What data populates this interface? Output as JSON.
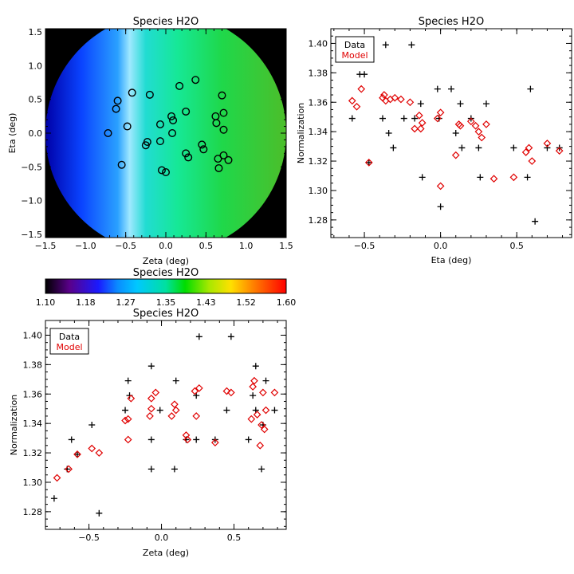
{
  "colorbar": {
    "title": "Species H2O",
    "ticks": [
      "1.10",
      "1.18",
      "1.27",
      "1.35",
      "1.43",
      "1.52",
      "1.60"
    ],
    "range": [
      1.1,
      1.6
    ]
  },
  "chart_data": [
    {
      "id": "map",
      "type": "heatmap",
      "title": "Species H2O",
      "xlabel": "Zeta (deg)",
      "ylabel": "Eta (deg)",
      "xlim": [
        -1.5,
        1.5
      ],
      "ylim": [
        -1.55,
        1.55
      ],
      "xticks": [
        -1.5,
        -1.0,
        -0.5,
        0.0,
        0.5,
        1.0,
        1.5
      ],
      "xtick_labels": [
        "−1.5",
        "−1.0",
        "−0.5",
        "0.0",
        "0.5",
        "1.0",
        "1.5"
      ],
      "yticks": [
        -1.5,
        -1.0,
        -0.5,
        0.0,
        0.5,
        1.0,
        1.5
      ],
      "ytick_labels": [
        "−1.5",
        "−1.0",
        "−0.5",
        "0.0",
        "0.5",
        "1.0",
        "1.5"
      ],
      "field_radius_deg": 1.5,
      "color_stops": [
        {
          "x": -1.5,
          "color": "#0000a8"
        },
        {
          "x": -1.05,
          "color": "#0a44ff"
        },
        {
          "x": -0.6,
          "color": "#2aa0ff"
        },
        {
          "x": -0.45,
          "color": "#9fe8ff"
        },
        {
          "x": -0.25,
          "color": "#21dcd2"
        },
        {
          "x": 0.15,
          "color": "#16e896"
        },
        {
          "x": 0.7,
          "color": "#1fd84a"
        },
        {
          "x": 1.5,
          "color": "#4cbe2a"
        }
      ],
      "stations": [
        {
          "zeta": -0.72,
          "eta": 0.0
        },
        {
          "zeta": -0.62,
          "eta": 0.36
        },
        {
          "zeta": -0.6,
          "eta": 0.48
        },
        {
          "zeta": -0.55,
          "eta": -0.47
        },
        {
          "zeta": -0.48,
          "eta": 0.1
        },
        {
          "zeta": -0.42,
          "eta": 0.6
        },
        {
          "zeta": -0.25,
          "eta": -0.18
        },
        {
          "zeta": -0.23,
          "eta": -0.13
        },
        {
          "zeta": -0.2,
          "eta": 0.57
        },
        {
          "zeta": -0.07,
          "eta": -0.12
        },
        {
          "zeta": -0.07,
          "eta": 0.13
        },
        {
          "zeta": -0.05,
          "eta": -0.55
        },
        {
          "zeta": 0.0,
          "eta": -0.58
        },
        {
          "zeta": 0.07,
          "eta": 0.25
        },
        {
          "zeta": 0.09,
          "eta": 0.19
        },
        {
          "zeta": 0.08,
          "eta": 0.0
        },
        {
          "zeta": 0.17,
          "eta": 0.7
        },
        {
          "zeta": 0.25,
          "eta": 0.32
        },
        {
          "zeta": 0.25,
          "eta": -0.3
        },
        {
          "zeta": 0.28,
          "eta": -0.36
        },
        {
          "zeta": 0.37,
          "eta": 0.79
        },
        {
          "zeta": 0.45,
          "eta": -0.17
        },
        {
          "zeta": 0.47,
          "eta": -0.24
        },
        {
          "zeta": 0.62,
          "eta": 0.25
        },
        {
          "zeta": 0.63,
          "eta": 0.15
        },
        {
          "zeta": 0.65,
          "eta": -0.38
        },
        {
          "zeta": 0.66,
          "eta": -0.52
        },
        {
          "zeta": 0.7,
          "eta": 0.56
        },
        {
          "zeta": 0.72,
          "eta": 0.3
        },
        {
          "zeta": 0.72,
          "eta": 0.05
        },
        {
          "zeta": 0.72,
          "eta": -0.33
        },
        {
          "zeta": 0.78,
          "eta": -0.4
        }
      ]
    },
    {
      "id": "eta_plot",
      "type": "scatter",
      "title": "Species H2O",
      "xlabel": "Eta (deg)",
      "ylabel": "Normalization",
      "xlim": [
        -0.72,
        0.86
      ],
      "ylim": [
        1.268,
        1.41
      ],
      "xticks": [
        -0.5,
        0.0,
        0.5
      ],
      "xtick_labels": [
        "−0.5",
        "0.0",
        "0.5"
      ],
      "yticks": [
        1.28,
        1.3,
        1.32,
        1.34,
        1.36,
        1.38,
        1.4
      ],
      "ytick_labels": [
        "1.28",
        "1.30",
        "1.32",
        "1.34",
        "1.36",
        "1.38",
        "1.40"
      ],
      "legend": {
        "position": "top-left",
        "entries": [
          "Data",
          "Model"
        ]
      },
      "series": [
        {
          "name": "Data",
          "marker": "plus",
          "color": "#000000",
          "points": [
            [
              -0.58,
              1.349
            ],
            [
              -0.53,
              1.379
            ],
            [
              -0.5,
              1.379
            ],
            [
              -0.47,
              1.319
            ],
            [
              -0.38,
              1.349
            ],
            [
              -0.36,
              1.399
            ],
            [
              -0.34,
              1.339
            ],
            [
              -0.31,
              1.329
            ],
            [
              -0.24,
              1.349
            ],
            [
              -0.19,
              1.399
            ],
            [
              -0.17,
              1.349
            ],
            [
              -0.13,
              1.359
            ],
            [
              -0.12,
              1.309
            ],
            [
              -0.02,
              1.369
            ],
            [
              -0.01,
              1.349
            ],
            [
              0.0,
              1.289
            ],
            [
              0.07,
              1.369
            ],
            [
              0.1,
              1.339
            ],
            [
              0.13,
              1.359
            ],
            [
              0.14,
              1.329
            ],
            [
              0.2,
              1.349
            ],
            [
              0.25,
              1.329
            ],
            [
              0.26,
              1.309
            ],
            [
              0.3,
              1.359
            ],
            [
              0.48,
              1.329
            ],
            [
              0.57,
              1.309
            ],
            [
              0.59,
              1.369
            ],
            [
              0.62,
              1.279
            ],
            [
              0.7,
              1.329
            ],
            [
              0.78,
              1.329
            ]
          ]
        },
        {
          "name": "Model",
          "marker": "diamond",
          "color": "#e00000",
          "points": [
            [
              -0.58,
              1.361
            ],
            [
              -0.55,
              1.357
            ],
            [
              -0.52,
              1.369
            ],
            [
              -0.47,
              1.319
            ],
            [
              -0.38,
              1.363
            ],
            [
              -0.37,
              1.365
            ],
            [
              -0.36,
              1.361
            ],
            [
              -0.33,
              1.362
            ],
            [
              -0.3,
              1.363
            ],
            [
              -0.26,
              1.362
            ],
            [
              -0.2,
              1.36
            ],
            [
              -0.17,
              1.342
            ],
            [
              -0.14,
              1.351
            ],
            [
              -0.13,
              1.342
            ],
            [
              -0.12,
              1.346
            ],
            [
              -0.02,
              1.349
            ],
            [
              0.0,
              1.353
            ],
            [
              0.0,
              1.303
            ],
            [
              0.1,
              1.324
            ],
            [
              0.12,
              1.345
            ],
            [
              0.13,
              1.344
            ],
            [
              0.2,
              1.347
            ],
            [
              0.23,
              1.344
            ],
            [
              0.25,
              1.34
            ],
            [
              0.27,
              1.336
            ],
            [
              0.3,
              1.345
            ],
            [
              0.35,
              1.308
            ],
            [
              0.48,
              1.309
            ],
            [
              0.56,
              1.326
            ],
            [
              0.58,
              1.329
            ],
            [
              0.6,
              1.32
            ],
            [
              0.7,
              1.332
            ],
            [
              0.78,
              1.327
            ]
          ]
        }
      ]
    },
    {
      "id": "zeta_plot",
      "type": "scatter",
      "title": "Species H2O",
      "xlabel": "Zeta (deg)",
      "ylabel": "Normalization",
      "xlim": [
        -0.8,
        0.86
      ],
      "ylim": [
        1.268,
        1.41
      ],
      "xticks": [
        -0.5,
        0.0,
        0.5
      ],
      "xtick_labels": [
        "−0.5",
        "0.0",
        "0.5"
      ],
      "yticks": [
        1.28,
        1.3,
        1.32,
        1.34,
        1.36,
        1.38,
        1.4
      ],
      "ytick_labels": [
        "1.28",
        "1.30",
        "1.32",
        "1.34",
        "1.36",
        "1.38",
        "1.40"
      ],
      "legend": {
        "position": "top-left",
        "entries": [
          "Data",
          "Model"
        ]
      },
      "series": [
        {
          "name": "Data",
          "marker": "plus",
          "color": "#000000",
          "points": [
            [
              -0.74,
              1.289
            ],
            [
              -0.65,
              1.309
            ],
            [
              -0.62,
              1.329
            ],
            [
              -0.58,
              1.319
            ],
            [
              -0.48,
              1.339
            ],
            [
              -0.43,
              1.279
            ],
            [
              -0.25,
              1.349
            ],
            [
              -0.23,
              1.369
            ],
            [
              -0.22,
              1.359
            ],
            [
              -0.07,
              1.379
            ],
            [
              -0.07,
              1.329
            ],
            [
              -0.07,
              1.309
            ],
            [
              -0.01,
              1.349
            ],
            [
              0.09,
              1.309
            ],
            [
              0.1,
              1.369
            ],
            [
              0.17,
              1.329
            ],
            [
              0.24,
              1.359
            ],
            [
              0.24,
              1.329
            ],
            [
              0.26,
              1.399
            ],
            [
              0.37,
              1.329
            ],
            [
              0.45,
              1.349
            ],
            [
              0.48,
              1.399
            ],
            [
              0.6,
              1.329
            ],
            [
              0.63,
              1.359
            ],
            [
              0.65,
              1.379
            ],
            [
              0.65,
              1.349
            ],
            [
              0.69,
              1.309
            ],
            [
              0.7,
              1.339
            ],
            [
              0.72,
              1.369
            ],
            [
              0.78,
              1.349
            ]
          ]
        },
        {
          "name": "Model",
          "marker": "diamond",
          "color": "#e00000",
          "points": [
            [
              -0.72,
              1.303
            ],
            [
              -0.64,
              1.309
            ],
            [
              -0.58,
              1.319
            ],
            [
              -0.48,
              1.323
            ],
            [
              -0.43,
              1.32
            ],
            [
              -0.25,
              1.342
            ],
            [
              -0.23,
              1.343
            ],
            [
              -0.23,
              1.329
            ],
            [
              -0.21,
              1.357
            ],
            [
              -0.07,
              1.357
            ],
            [
              -0.07,
              1.35
            ],
            [
              -0.08,
              1.345
            ],
            [
              -0.04,
              1.361
            ],
            [
              0.07,
              1.345
            ],
            [
              0.09,
              1.353
            ],
            [
              0.1,
              1.349
            ],
            [
              0.17,
              1.332
            ],
            [
              0.18,
              1.329
            ],
            [
              0.23,
              1.362
            ],
            [
              0.24,
              1.345
            ],
            [
              0.26,
              1.364
            ],
            [
              0.37,
              1.327
            ],
            [
              0.45,
              1.362
            ],
            [
              0.48,
              1.361
            ],
            [
              0.62,
              1.343
            ],
            [
              0.63,
              1.365
            ],
            [
              0.64,
              1.369
            ],
            [
              0.66,
              1.346
            ],
            [
              0.68,
              1.325
            ],
            [
              0.69,
              1.339
            ],
            [
              0.7,
              1.361
            ],
            [
              0.71,
              1.336
            ],
            [
              0.72,
              1.349
            ],
            [
              0.78,
              1.361
            ]
          ]
        }
      ]
    }
  ]
}
